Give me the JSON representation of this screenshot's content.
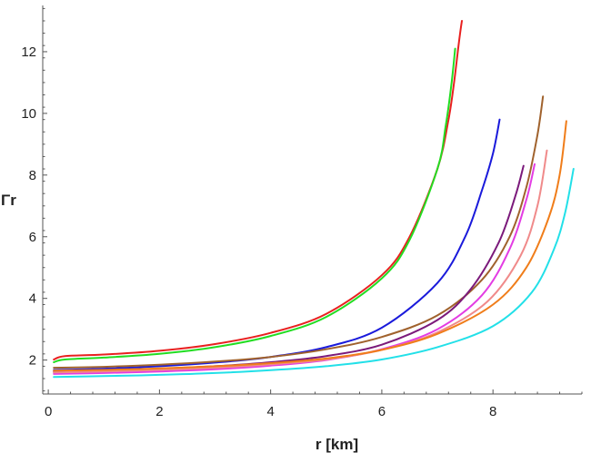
{
  "chart_data": {
    "type": "line",
    "xlabel": "r [km]",
    "ylabel": "Γr",
    "xlim": [
      -0.1,
      9.6
    ],
    "ylim": [
      0.9,
      13.5
    ],
    "xticks": [
      0,
      2,
      4,
      6,
      8
    ],
    "yticks": [
      2,
      4,
      6,
      8,
      10,
      12
    ],
    "grid": false,
    "series": [
      {
        "color": "#e8201f",
        "x": [
          0.1,
          0.3,
          1,
          2,
          3,
          4,
          5,
          6,
          6.5,
          7,
          7.2,
          7.3,
          7.38,
          7.44
        ],
        "y": [
          2.02,
          2.13,
          2.18,
          2.3,
          2.52,
          2.88,
          3.5,
          4.75,
          6.0,
          8.2,
          9.8,
          11.0,
          12.2,
          13.0
        ]
      },
      {
        "color": "#22dd22",
        "x": [
          0.1,
          0.3,
          1,
          2,
          3,
          4,
          5,
          6,
          6.5,
          7,
          7.15,
          7.25,
          7.32
        ],
        "y": [
          1.93,
          2.02,
          2.08,
          2.2,
          2.42,
          2.78,
          3.4,
          4.65,
          5.9,
          8.2,
          9.6,
          10.9,
          12.1
        ]
      },
      {
        "color": "#1a1adb",
        "x": [
          0.1,
          1,
          2,
          3,
          4,
          5,
          6,
          7,
          7.5,
          7.8,
          8.0,
          8.12
        ],
        "y": [
          1.68,
          1.72,
          1.8,
          1.92,
          2.1,
          2.42,
          3.05,
          4.5,
          6.0,
          7.5,
          8.7,
          9.8
        ]
      },
      {
        "color": "#a0622d",
        "x": [
          0.1,
          1,
          2,
          3,
          4,
          5,
          6,
          7,
          7.8,
          8.3,
          8.6,
          8.8,
          8.9
        ],
        "y": [
          1.75,
          1.78,
          1.85,
          1.95,
          2.1,
          2.35,
          2.75,
          3.45,
          4.6,
          6.0,
          7.6,
          9.3,
          10.55
        ]
      },
      {
        "color": "#7b1a7b",
        "x": [
          0.1,
          1,
          2,
          3,
          4,
          5,
          6,
          7,
          7.6,
          8.1,
          8.4,
          8.55
        ],
        "y": [
          1.62,
          1.65,
          1.72,
          1.8,
          1.93,
          2.13,
          2.5,
          3.3,
          4.3,
          5.8,
          7.3,
          8.3
        ]
      },
      {
        "color": "#e33ce3",
        "x": [
          0.1,
          1,
          2,
          3,
          4,
          5,
          6,
          7,
          7.8,
          8.3,
          8.6,
          8.75
        ],
        "y": [
          1.55,
          1.58,
          1.63,
          1.7,
          1.82,
          2.0,
          2.35,
          3.0,
          4.1,
          5.6,
          7.2,
          8.35
        ]
      },
      {
        "color": "#f08a8a",
        "x": [
          0.1,
          1,
          2,
          3,
          4,
          5,
          6,
          7,
          7.9,
          8.5,
          8.8,
          8.97
        ],
        "y": [
          1.6,
          1.63,
          1.68,
          1.75,
          1.86,
          2.02,
          2.33,
          2.9,
          3.9,
          5.4,
          7.0,
          8.8
        ]
      },
      {
        "color": "#f07d1a",
        "x": [
          0.1,
          1,
          2,
          3,
          4,
          5,
          6,
          7,
          8,
          8.6,
          9.0,
          9.2,
          9.32
        ],
        "y": [
          1.66,
          1.68,
          1.73,
          1.8,
          1.9,
          2.05,
          2.33,
          2.85,
          3.8,
          5.0,
          6.6,
          8.0,
          9.75
        ]
      },
      {
        "color": "#22e0e8",
        "x": [
          0.1,
          1,
          2,
          3,
          4,
          5,
          6,
          7,
          8,
          8.7,
          9.1,
          9.3,
          9.45
        ],
        "y": [
          1.45,
          1.48,
          1.52,
          1.58,
          1.67,
          1.8,
          2.02,
          2.42,
          3.1,
          4.2,
          5.6,
          6.8,
          8.2
        ]
      }
    ]
  }
}
